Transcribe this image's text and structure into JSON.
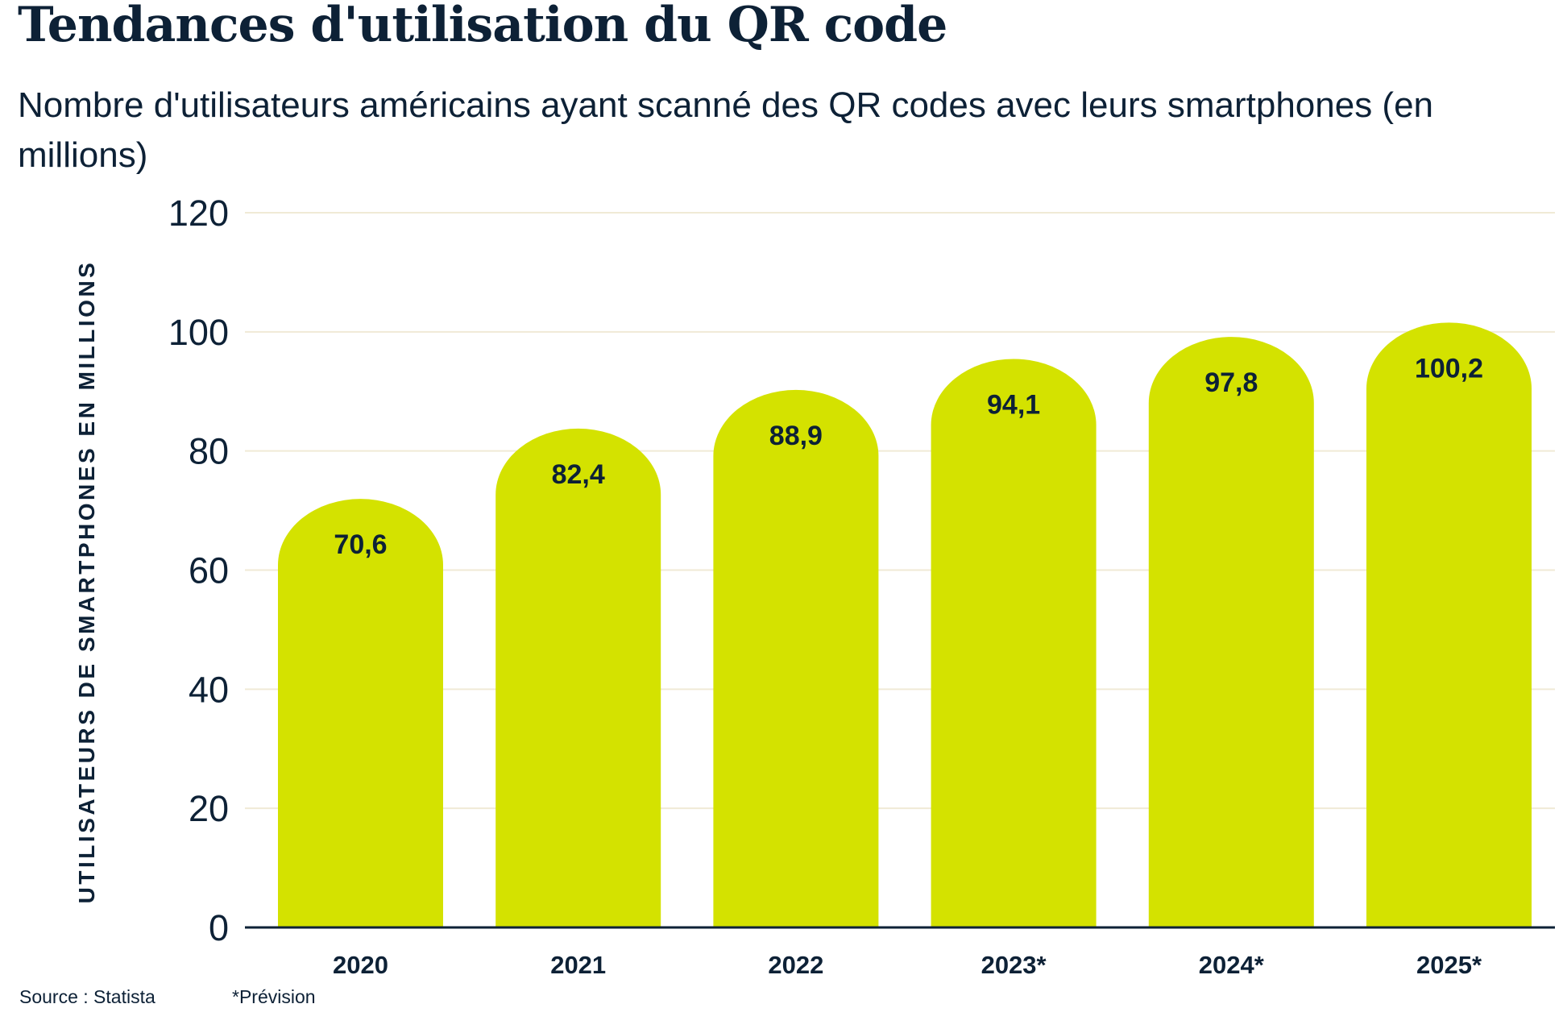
{
  "title": "Tendances d'utilisation du QR code",
  "subtitle": "Nombre d'utilisateurs américains ayant scanné des QR codes avec leurs smartphones (en millions)",
  "footer": {
    "source": "Source : Statista",
    "note": "*Prévision"
  },
  "colors": {
    "bar": "#d4e200",
    "text": "#0d2136",
    "grid": "#f0ead6"
  },
  "chart_data": {
    "type": "bar",
    "title": "Tendances d'utilisation du QR code",
    "subtitle": "Nombre d'utilisateurs américains ayant scanné des QR codes avec leurs smartphones (en millions)",
    "xlabel": "",
    "ylabel": "UTILISATEURS DE SMARTPHONES EN MILLIONS",
    "categories": [
      "2020",
      "2021",
      "2022",
      "2023*",
      "2024*",
      "2025*"
    ],
    "values": [
      70.6,
      82.4,
      88.9,
      94.1,
      97.8,
      100.2
    ],
    "data_labels": [
      "70,6",
      "82,4",
      "88,9",
      "94,1",
      "97,8",
      "100,2"
    ],
    "ylim": [
      0,
      120
    ],
    "yticks": [
      0,
      20,
      40,
      60,
      80,
      100,
      120
    ],
    "grid": true,
    "legend": "none"
  }
}
